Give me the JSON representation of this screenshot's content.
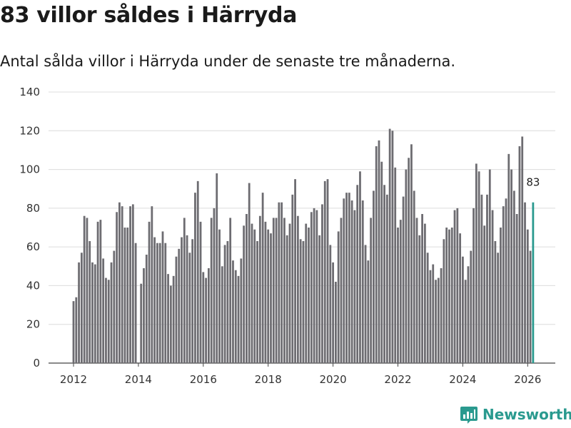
{
  "title": "83 villor såldes i Härryda",
  "subtitle": "Antal sålda villor i Härryda under de senaste tre månaderna.",
  "brand": {
    "name": "Newsworthy",
    "color": "#2a9a8f"
  },
  "chart_data": {
    "type": "bar",
    "title": "83 villor såldes i Härryda",
    "xlabel": "",
    "ylabel": "",
    "ylim": [
      0,
      140
    ],
    "y_ticks": [
      0,
      20,
      40,
      60,
      80,
      100,
      120,
      140
    ],
    "x_tick_labels": [
      "2012",
      "2014",
      "2016",
      "2018",
      "2020",
      "2022",
      "2024",
      "2026"
    ],
    "x_tick_years": [
      2012,
      2014,
      2016,
      2018,
      2020,
      2022,
      2024,
      2026
    ],
    "start": {
      "year": 2012,
      "month": 1
    },
    "grid": true,
    "bar_color": "#6d6c71",
    "highlight_color": "#2a9a8f",
    "highlight_label": "83",
    "values": [
      32,
      34,
      52,
      57,
      76,
      75,
      63,
      52,
      51,
      73,
      74,
      54,
      44,
      43,
      52,
      58,
      78,
      83,
      81,
      70,
      70,
      81,
      82,
      62,
      null,
      41,
      49,
      56,
      73,
      81,
      65,
      62,
      62,
      68,
      62,
      46,
      40,
      45,
      55,
      59,
      65,
      75,
      66,
      57,
      64,
      88,
      94,
      73,
      47,
      44,
      49,
      75,
      80,
      98,
      69,
      50,
      61,
      63,
      75,
      53,
      48,
      45,
      54,
      71,
      77,
      93,
      72,
      69,
      63,
      76,
      88,
      73,
      69,
      67,
      75,
      75,
      83,
      83,
      75,
      66,
      72,
      87,
      95,
      76,
      64,
      63,
      72,
      70,
      78,
      80,
      79,
      66,
      82,
      94,
      95,
      61,
      52,
      42,
      68,
      75,
      85,
      88,
      88,
      84,
      79,
      92,
      99,
      84,
      61,
      53,
      75,
      89,
      112,
      115,
      104,
      92,
      87,
      121,
      120,
      101,
      70,
      74,
      86,
      100,
      106,
      113,
      89,
      75,
      66,
      77,
      72,
      57,
      48,
      51,
      43,
      44,
      49,
      64,
      70,
      69,
      70,
      79,
      80,
      67,
      55,
      43,
      50,
      58,
      80,
      103,
      99,
      87,
      71,
      87,
      100,
      79,
      63,
      57,
      70,
      81,
      85,
      108,
      100,
      89,
      77,
      112,
      117,
      83,
      69,
      58,
      83
    ]
  }
}
